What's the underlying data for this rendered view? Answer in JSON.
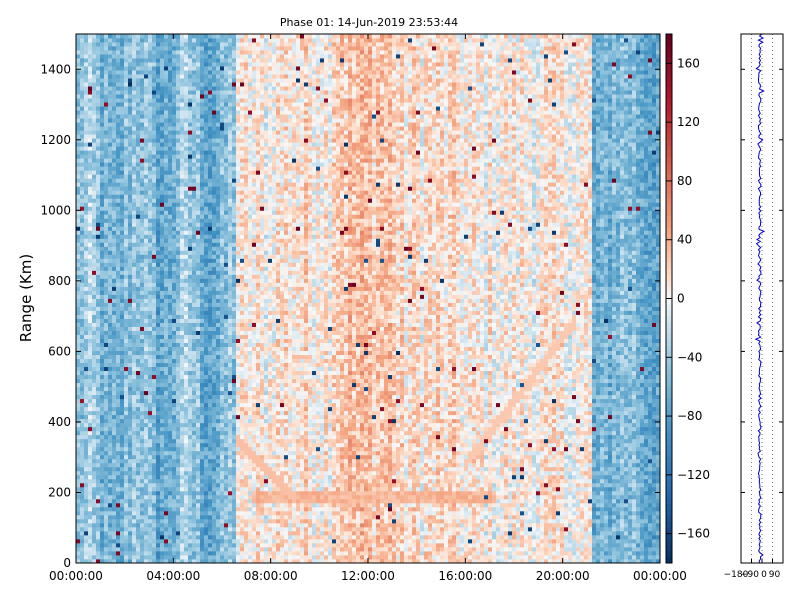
{
  "chart_data": [
    {
      "type": "heatmap",
      "title": "Phase 01: 14-Jun-2019 23:53:44",
      "xlabel": "",
      "ylabel": "Range (Km)",
      "x_ticks": [
        "00:00:00",
        "04:00:00",
        "08:00:00",
        "12:00:00",
        "16:00:00",
        "20:00:00",
        "00:00:00"
      ],
      "y_ticks": [
        0,
        200,
        400,
        600,
        800,
        1000,
        1200,
        1400
      ],
      "ylim": [
        0,
        1500
      ],
      "xlim_hours": [
        0,
        24
      ],
      "colorbar": {
        "range": [
          -180,
          180
        ],
        "ticks": [
          160,
          120,
          80,
          40,
          0,
          -40,
          -80,
          -120,
          -160
        ],
        "colormap": "RdBu_r"
      },
      "structure": {
        "blue_band_hours": [
          [
            0,
            6.6
          ],
          [
            21.2,
            24
          ]
        ],
        "red_core_hours": [
          10.5,
          13.2
        ],
        "horizontal_echo_km": 190,
        "echo_hours": [
          7.3,
          17.2
        ]
      },
      "colors": {
        "deep_blue": "#053061",
        "blue": "#4393c3",
        "light_blue": "#d1e5f0",
        "white": "#f7f7f7",
        "light_red": "#fddbc7",
        "red": "#d6604d",
        "deep_red": "#67001f"
      }
    },
    {
      "type": "line",
      "title": "",
      "x_ticks": [
        "-180",
        "-90",
        "0",
        "90"
      ],
      "xlim": [
        -180,
        180
      ],
      "ylim": [
        0,
        1500
      ],
      "series_color": "#0000cc",
      "mean_value": -20,
      "grid": "dotted vertical"
    }
  ]
}
